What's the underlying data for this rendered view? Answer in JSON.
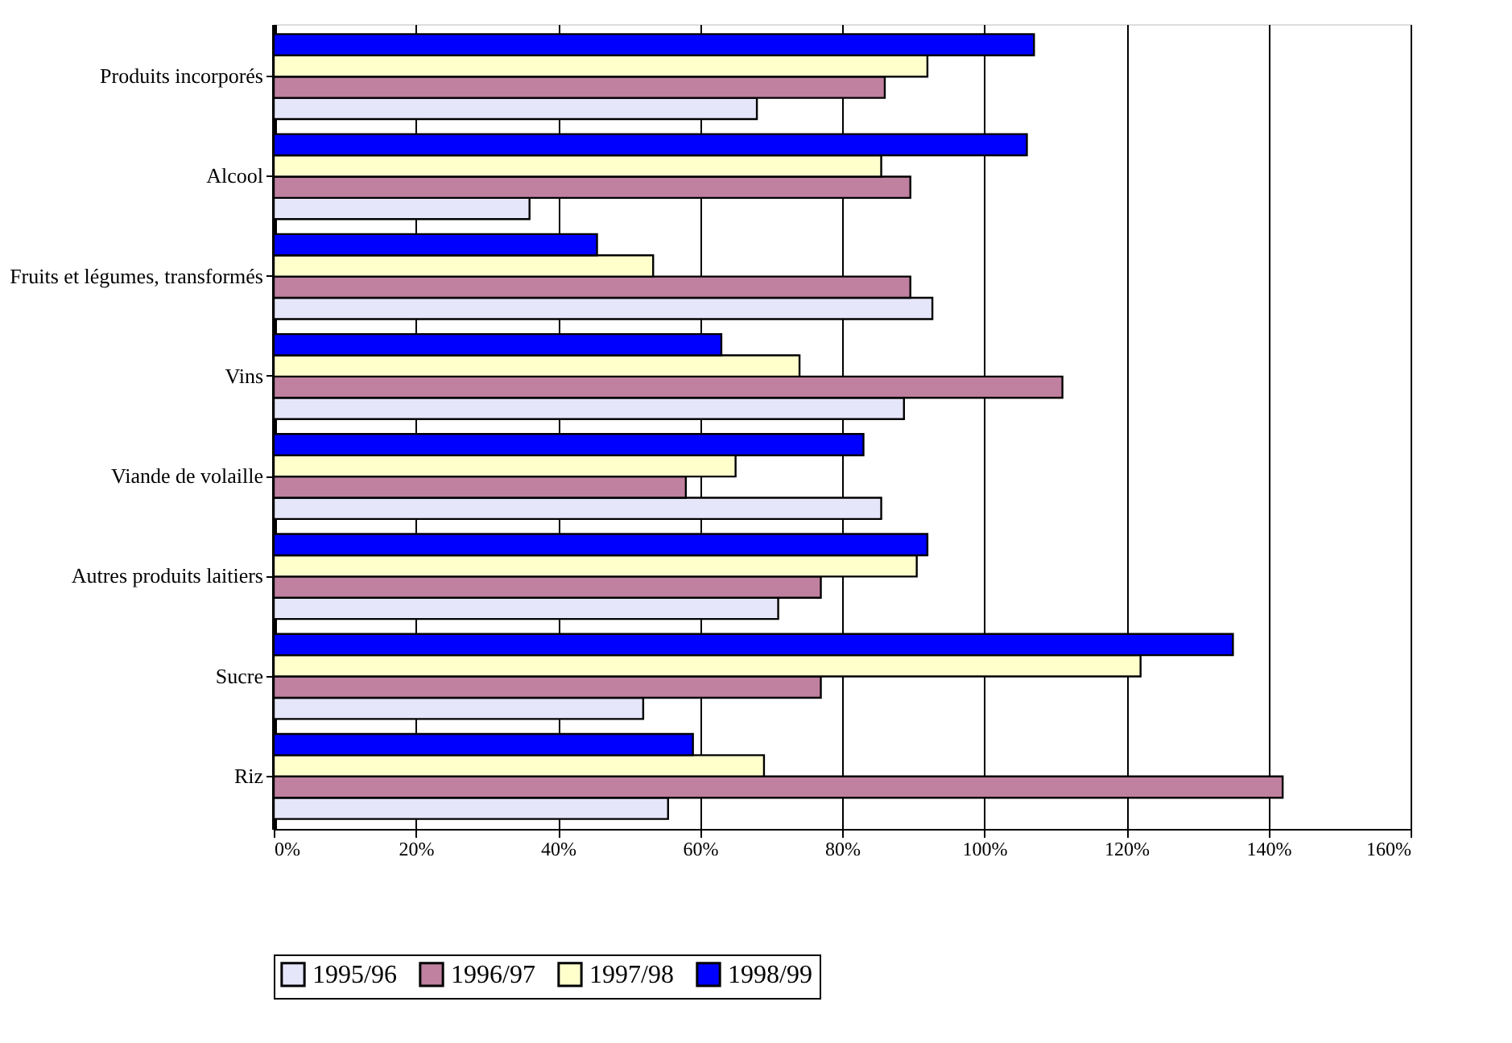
{
  "chart_data": {
    "type": "bar",
    "orientation": "horizontal",
    "categories": [
      "Produits incorporés",
      "Alcool",
      "Fruits et légumes, transformés",
      "Vins",
      "Viande de volaille",
      "Autres produits laitiers",
      "Sucre",
      "Riz"
    ],
    "series": [
      {
        "name": "1995/96",
        "color": "#e6e6fa",
        "values": [
          68,
          36,
          92.7,
          88.7,
          85.5,
          71,
          52,
          55.5
        ]
      },
      {
        "name": "1996/97",
        "color": "#c080a0",
        "values": [
          86,
          89.6,
          89.6,
          111,
          58,
          77,
          77,
          142
        ]
      },
      {
        "name": "1997/98",
        "color": "#ffffcc",
        "values": [
          92,
          85.5,
          53.4,
          74,
          65,
          90.5,
          122,
          69
        ]
      },
      {
        "name": "1998/99",
        "color": "#0000ff",
        "values": [
          107,
          106,
          45.5,
          63,
          83,
          92,
          135,
          59
        ]
      }
    ],
    "xlim": [
      0,
      160
    ],
    "xticks": [
      {
        "value": 0,
        "label": "0%"
      },
      {
        "value": 20,
        "label": "20%"
      },
      {
        "value": 40,
        "label": "40%"
      },
      {
        "value": 60,
        "label": "60%"
      },
      {
        "value": 80,
        "label": "80%"
      },
      {
        "value": 100,
        "label": "100%"
      },
      {
        "value": 120,
        "label": "120%"
      },
      {
        "value": 140,
        "label": "140%"
      },
      {
        "value": 160,
        "label": "160%"
      }
    ],
    "grid": "x",
    "legend": "bottom"
  }
}
